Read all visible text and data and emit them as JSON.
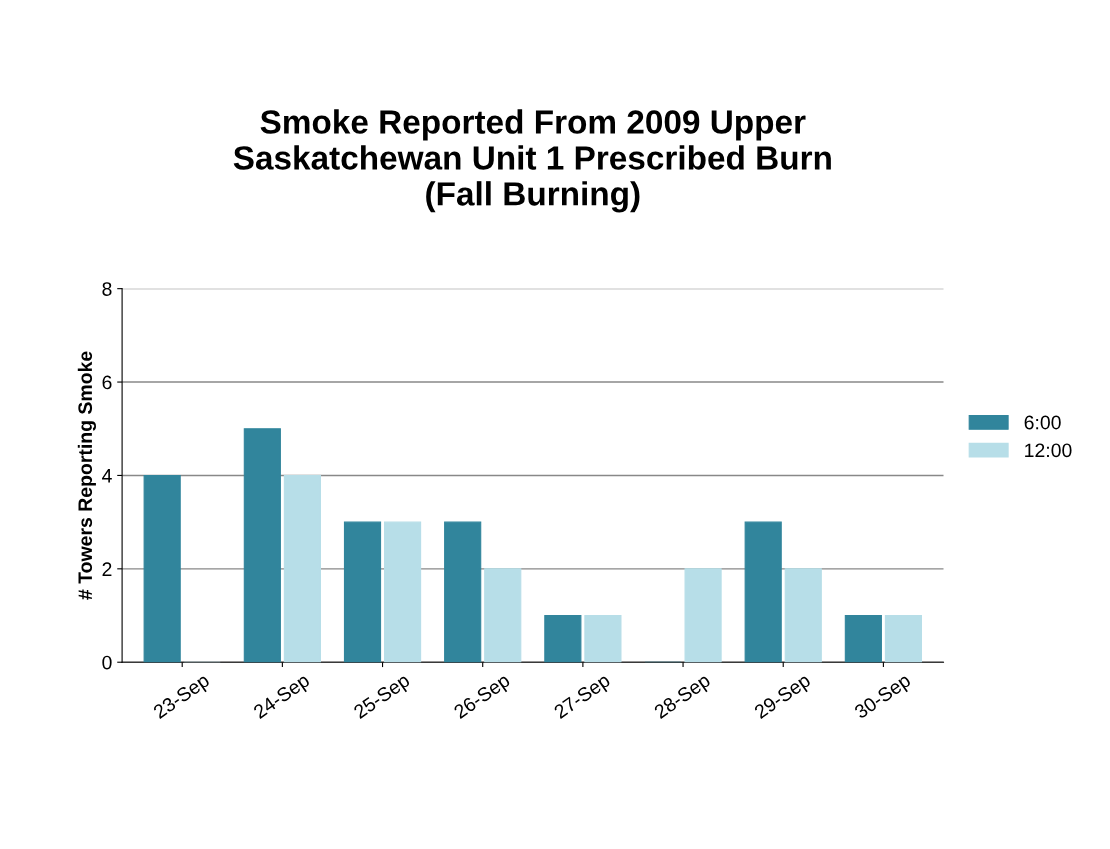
{
  "chart_data": {
    "type": "bar",
    "title": "Smoke Reported From 2009 Upper\nSaskatchewan Unit 1 Prescribed Burn\n(Fall Burning)",
    "ylabel": "# Towers Reporting Smoke",
    "categories": [
      "23-Sep",
      "24-Sep",
      "25-Sep",
      "26-Sep",
      "27-Sep",
      "28-Sep",
      "29-Sep",
      "30-Sep"
    ],
    "series": [
      {
        "name": "6:00",
        "color": "#31859c",
        "values": [
          4,
          5,
          3,
          3,
          1,
          0,
          3,
          1
        ]
      },
      {
        "name": "12:00",
        "color": "#b7dee8",
        "values": [
          0,
          4,
          3,
          2,
          1,
          2,
          2,
          1
        ]
      }
    ],
    "ylim": [
      0,
      8
    ],
    "yticks": [
      0,
      2,
      4,
      6,
      8
    ],
    "grid": "y",
    "legend": "right"
  }
}
